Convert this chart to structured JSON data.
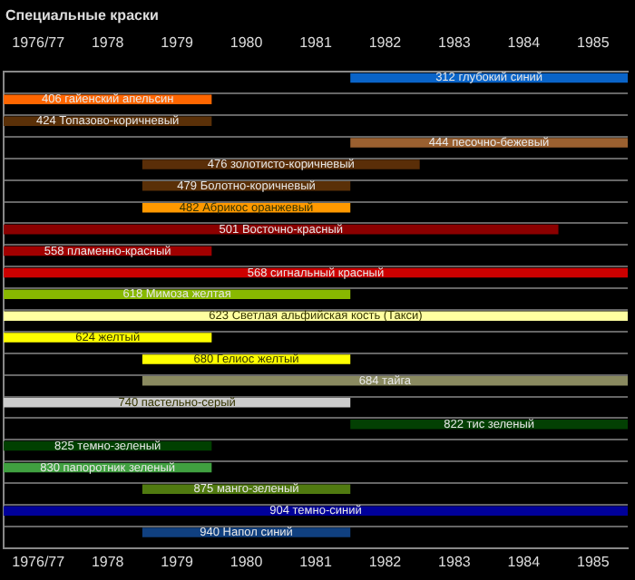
{
  "chart_data": {
    "type": "bar",
    "orientation": "horizontal",
    "title": "Специальные краски",
    "tick_labels": "x",
    "grid": "y",
    "categories": [
      "312 глубокий синий",
      "406 гайенский апельсин",
      "424 Топазово-коричневый",
      "444 песочно-бежевый",
      "476 золотисто-коричневый",
      "479 Болотно-коричневый",
      "482 Абрикос оранжевый",
      "501 Восточно-красный",
      "558 пламенно-красный",
      "568 сигнальный красный",
      "618 Мимоза желтая",
      "623 Светлая альфийская кость (Такси)",
      "624 желтый",
      "680 Гелиос желтый",
      "684 тайга",
      "740 пастельно-серый",
      "822 тис зеленый",
      "825 темно-зеленый",
      "830 папоротник зеленый",
      "875 манго-зеленый",
      "904 темно-синий",
      "940 Напол синий"
    ],
    "base": [
      1981.5,
      1976.5,
      1976.5,
      1981.5,
      1978.5,
      1978.5,
      1978.5,
      1976.5,
      1976.5,
      1976.5,
      1976.5,
      1976.5,
      1976.5,
      1978.5,
      1978.5,
      1976.5,
      1981.5,
      1976.5,
      1976.5,
      1978.5,
      1976.5,
      1978.5
    ],
    "values": [
      4,
      3,
      3,
      4,
      4,
      3,
      3,
      8,
      3,
      9,
      5,
      9,
      3,
      3,
      7,
      5,
      4,
      3,
      3,
      3,
      9,
      3
    ],
    "colors": [
      "#0a64c8",
      "#ff6600",
      "#5a3008",
      "#9a6030",
      "#5a2e08",
      "#5a3008",
      "#ff9900",
      "#8b0000",
      "#a00000",
      "#cc0000",
      "#88b800",
      "#ffffa0",
      "#ffff00",
      "#ffff00",
      "#8a8a60",
      "#cccccc",
      "#034003",
      "#004000",
      "#40a040",
      "#507a10",
      "#000099",
      "#104080"
    ],
    "xlim": [
      1976.5,
      1985.5
    ],
    "xticks": [
      {
        "value": 1977,
        "label": "1976/77"
      },
      1978,
      1979,
      1980,
      1981,
      1982,
      1983,
      1984,
      1985
    ],
    "x2lim": [
      1976.5,
      1985.5
    ],
    "x2ticks": [
      {
        "value": 1977,
        "label": "1976/77"
      },
      1978,
      1979,
      1980,
      1981,
      1982,
      1983,
      1984,
      1985
    ]
  }
}
